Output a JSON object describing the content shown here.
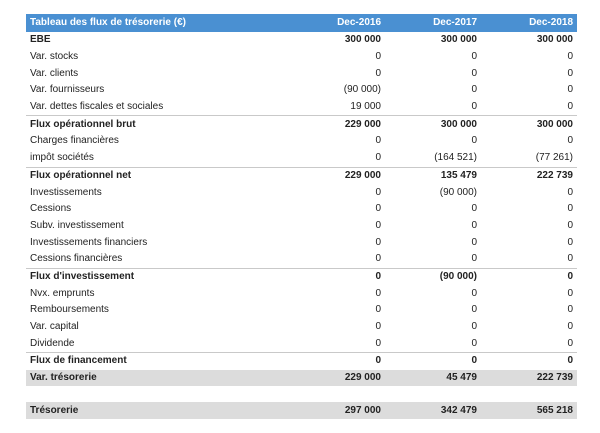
{
  "header": {
    "title": "Tableau des flux de trésorerie (€)",
    "cols": [
      "Dec-2016",
      "Dec-2017",
      "Dec-2018"
    ]
  },
  "rows": [
    {
      "label": "EBE",
      "values": [
        "300 000",
        "300 000",
        "300 000"
      ],
      "style": "bold"
    },
    {
      "label": "Var. stocks",
      "values": [
        "0",
        "0",
        "0"
      ],
      "style": "normal"
    },
    {
      "label": "Var. clients",
      "values": [
        "0",
        "0",
        "0"
      ],
      "style": "normal"
    },
    {
      "label": "Var. fournisseurs",
      "values": [
        "(90 000)",
        "0",
        "0"
      ],
      "style": "normal"
    },
    {
      "label": "Var. dettes fiscales et sociales",
      "values": [
        "19 000",
        "0",
        "0"
      ],
      "style": "normal"
    },
    {
      "label": "Flux opérationnel brut",
      "values": [
        "229 000",
        "300 000",
        "300 000"
      ],
      "style": "bold-sep"
    },
    {
      "label": "Charges financières",
      "values": [
        "0",
        "0",
        "0"
      ],
      "style": "normal"
    },
    {
      "label": "impôt sociétés",
      "values": [
        "0",
        "(164 521)",
        "(77 261)"
      ],
      "style": "normal"
    },
    {
      "label": "Flux opérationnel net",
      "values": [
        "229 000",
        "135 479",
        "222 739"
      ],
      "style": "bold-sep"
    },
    {
      "label": "Investissements",
      "values": [
        "0",
        "(90 000)",
        "0"
      ],
      "style": "normal"
    },
    {
      "label": "Cessions",
      "values": [
        "0",
        "0",
        "0"
      ],
      "style": "normal"
    },
    {
      "label": "Subv. investissement",
      "values": [
        "0",
        "0",
        "0"
      ],
      "style": "normal"
    },
    {
      "label": "Investissements financiers",
      "values": [
        "0",
        "0",
        "0"
      ],
      "style": "normal"
    },
    {
      "label": "Cessions financières",
      "values": [
        "0",
        "0",
        "0"
      ],
      "style": "normal"
    },
    {
      "label": "Flux d'investissement",
      "values": [
        "0",
        "(90 000)",
        "0"
      ],
      "style": "bold-sep"
    },
    {
      "label": "Nvx. emprunts",
      "values": [
        "0",
        "0",
        "0"
      ],
      "style": "normal"
    },
    {
      "label": "Remboursements",
      "values": [
        "0",
        "0",
        "0"
      ],
      "style": "normal"
    },
    {
      "label": "Var. capital",
      "values": [
        "0",
        "0",
        "0"
      ],
      "style": "normal"
    },
    {
      "label": "Dividende",
      "values": [
        "0",
        "0",
        "0"
      ],
      "style": "normal"
    },
    {
      "label": "Flux de financement",
      "values": [
        "0",
        "0",
        "0"
      ],
      "style": "bold-sep"
    },
    {
      "label": "Var. trésorerie",
      "values": [
        "229 000",
        "45 479",
        "222 739"
      ],
      "style": "grey"
    },
    {
      "label": "",
      "values": [
        "",
        "",
        ""
      ],
      "style": "blank"
    },
    {
      "label": "Trésorerie",
      "values": [
        "297 000",
        "342 479",
        "565 218"
      ],
      "style": "grey"
    }
  ]
}
